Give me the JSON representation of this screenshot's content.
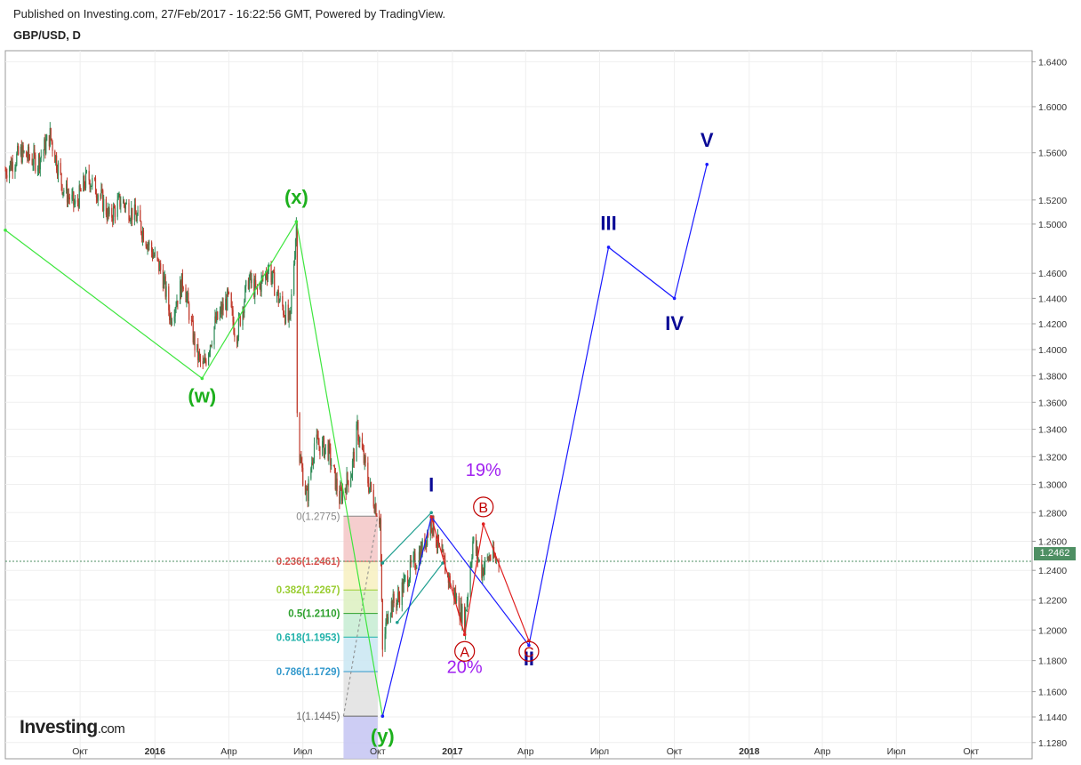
{
  "header": {
    "published": "Published on Investing.com, 27/Feb/2017 - 16:22:56 GMT, Powered by TradingView.",
    "symbol": "GBP/USD, D"
  },
  "logo": {
    "main": "Investing",
    "suffix": ".com"
  },
  "current_price_label": "1.2462",
  "colors": {
    "up": "#2e8b57",
    "down": "#c0392b",
    "corrective": "#3ee63e",
    "impulse": "#1a1aff",
    "abc": "#e02020",
    "label_green": "#1db01d",
    "label_navy": "#0a0a96",
    "label_red": "#c00000",
    "label_purple": "#a020f0"
  },
  "chart_data": {
    "type": "line",
    "title": "GBP/USD, D",
    "xlabel": "",
    "ylabel": "",
    "x_ticks": [
      "Окт",
      "2016",
      "Апр",
      "Июл",
      "Окт",
      "2017",
      "Апр",
      "Июл",
      "Окт",
      "2018",
      "Апр",
      "Июл",
      "Окт"
    ],
    "x_range": [
      "2015-07-01",
      "2018-12-15"
    ],
    "y_ticks": [
      "1.6400",
      "1.6000",
      "1.5600",
      "1.5200",
      "1.5000",
      "1.4600",
      "1.4400",
      "1.4200",
      "1.4000",
      "1.3800",
      "1.3600",
      "1.3400",
      "1.3200",
      "1.3000",
      "1.2800",
      "1.2600",
      "1.2400",
      "1.2200",
      "1.2000",
      "1.1800",
      "1.1600",
      "1.1440",
      "1.1280"
    ],
    "y_scale": "log",
    "ylim": [
      1.118,
      1.65
    ],
    "grid": true,
    "current_price": 1.2462,
    "price_path": [
      [
        "2015-07-01",
        1.545
      ],
      [
        "2015-07-20",
        1.56
      ],
      [
        "2015-08-10",
        1.552
      ],
      [
        "2015-08-25",
        1.575
      ],
      [
        "2015-09-10",
        1.53
      ],
      [
        "2015-09-25",
        1.515
      ],
      [
        "2015-10-10",
        1.54
      ],
      [
        "2015-10-25",
        1.525
      ],
      [
        "2015-11-06",
        1.505
      ],
      [
        "2015-11-20",
        1.52
      ],
      [
        "2015-12-10",
        1.505
      ],
      [
        "2015-12-25",
        1.482
      ],
      [
        "2016-01-10",
        1.46
      ],
      [
        "2016-01-20",
        1.425
      ],
      [
        "2016-02-05",
        1.455
      ],
      [
        "2016-02-20",
        1.4
      ],
      [
        "2016-02-29",
        1.385
      ],
      [
        "2016-03-15",
        1.42
      ],
      [
        "2016-03-31",
        1.44
      ],
      [
        "2016-04-10",
        1.41
      ],
      [
        "2016-04-25",
        1.455
      ],
      [
        "2016-05-05",
        1.445
      ],
      [
        "2016-05-20",
        1.465
      ],
      [
        "2016-06-01",
        1.44
      ],
      [
        "2016-06-15",
        1.42
      ],
      [
        "2016-06-23",
        1.5
      ],
      [
        "2016-06-24",
        1.36
      ],
      [
        "2016-06-27",
        1.32
      ],
      [
        "2016-07-06",
        1.29
      ],
      [
        "2016-07-15",
        1.33
      ],
      [
        "2016-08-01",
        1.325
      ],
      [
        "2016-08-15",
        1.29
      ],
      [
        "2016-08-30",
        1.31
      ],
      [
        "2016-09-06",
        1.34
      ],
      [
        "2016-09-20",
        1.3
      ],
      [
        "2016-10-04",
        1.275
      ],
      [
        "2016-10-07",
        1.185
      ],
      [
        "2016-10-14",
        1.215
      ],
      [
        "2016-10-25",
        1.22
      ],
      [
        "2016-11-10",
        1.24
      ],
      [
        "2016-11-25",
        1.255
      ],
      [
        "2016-12-06",
        1.275
      ],
      [
        "2016-12-15",
        1.255
      ],
      [
        "2016-12-30",
        1.23
      ],
      [
        "2017-01-16",
        1.205
      ],
      [
        "2017-01-26",
        1.26
      ],
      [
        "2017-02-06",
        1.24
      ],
      [
        "2017-02-16",
        1.25
      ],
      [
        "2017-02-27",
        1.2462
      ]
    ],
    "wave_wxy": [
      [
        "2015-07-01",
        1.495
      ],
      [
        "2016-02-28",
        1.378
      ],
      [
        "2016-06-23",
        1.502
      ],
      [
        "2016-10-07",
        1.1445
      ]
    ],
    "wave_impulse": [
      [
        "2016-10-07",
        1.1445
      ],
      [
        "2016-12-06",
        1.277
      ],
      [
        "2017-04-05",
        1.19
      ],
      [
        "2017-07-12",
        1.481
      ],
      [
        "2017-10-01",
        1.44
      ],
      [
        "2017-11-10",
        1.55
      ]
    ],
    "wave_abc": [
      [
        "2016-12-06",
        1.277
      ],
      [
        "2017-01-16",
        1.197
      ],
      [
        "2017-02-08",
        1.272
      ],
      [
        "2017-04-05",
        1.193
      ]
    ],
    "channel_lines": [
      [
        [
          "2016-10-07",
          1.245
        ],
        [
          "2016-12-06",
          1.28
        ]
      ],
      [
        [
          "2016-10-25",
          1.205
        ],
        [
          "2016-12-20",
          1.245
        ]
      ]
    ],
    "fibonacci": {
      "x_start": "2016-08-20",
      "x_end": "2016-10-01",
      "levels": [
        {
          "label": "0(1.2775)",
          "ratio": 0,
          "price": 1.2775,
          "color": "#888888",
          "fill": "#f3c6c6"
        },
        {
          "label": "0.236(1.2461)",
          "ratio": 0.236,
          "price": 1.2461,
          "color": "#d9534f",
          "fill": "#f7f0c0"
        },
        {
          "label": "0.382(1.2267)",
          "ratio": 0.382,
          "price": 1.2267,
          "color": "#9acd32",
          "fill": "#dcf0c0"
        },
        {
          "label": "0.5(1.2110)",
          "ratio": 0.5,
          "price": 1.211,
          "color": "#2ca02c",
          "fill": "#c6ecd2"
        },
        {
          "label": "0.618(1.1953)",
          "ratio": 0.618,
          "price": 1.1953,
          "color": "#20b2aa",
          "fill": "#c9e6f2"
        },
        {
          "label": "0.786(1.1729)",
          "ratio": 0.786,
          "price": 1.1729,
          "color": "#3399cc",
          "fill": "#e0e0e0"
        },
        {
          "label": "1(1.1445)",
          "ratio": 1,
          "price": 1.1445,
          "color": "#666666",
          "fill": "#c4c4f2"
        }
      ]
    },
    "annotations": [
      {
        "text": "(w)",
        "x": "2016-02-28",
        "y": 1.36,
        "color": "label_green"
      },
      {
        "text": "(x)",
        "x": "2016-06-23",
        "y": 1.517,
        "color": "label_green"
      },
      {
        "text": "(y)",
        "x": "2016-10-07",
        "y": 1.128,
        "color": "label_green"
      },
      {
        "text": "I",
        "x": "2016-12-06",
        "y": 1.295,
        "color": "label_navy"
      },
      {
        "text": "II",
        "x": "2017-04-05",
        "y": 1.177,
        "color": "label_navy"
      },
      {
        "text": "III",
        "x": "2017-07-12",
        "y": 1.495,
        "color": "label_navy"
      },
      {
        "text": "IV",
        "x": "2017-10-01",
        "y": 1.415,
        "color": "label_navy"
      },
      {
        "text": "V",
        "x": "2017-11-10",
        "y": 1.565,
        "color": "label_navy"
      },
      {
        "text": "19%",
        "x": "2017-02-08",
        "y": 1.306,
        "color": "label_purple"
      },
      {
        "text": "20%",
        "x": "2017-01-16",
        "y": 1.172,
        "color": "label_purple"
      },
      {
        "text": "A",
        "x": "2017-01-16",
        "y": 1.186,
        "color": "label_red",
        "circled": true
      },
      {
        "text": "B",
        "x": "2017-02-08",
        "y": 1.284,
        "color": "label_red",
        "circled": true
      },
      {
        "text": "C",
        "x": "2017-04-05",
        "y": 1.186,
        "color": "label_red",
        "circled": true
      }
    ]
  }
}
